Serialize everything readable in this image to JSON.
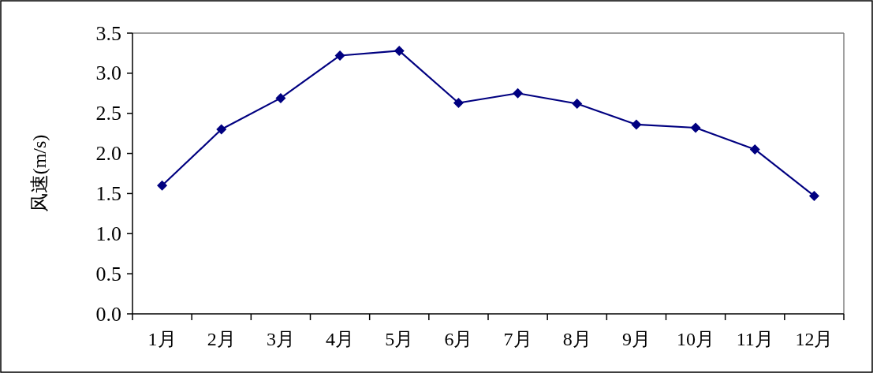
{
  "chart_data": {
    "type": "line",
    "ylabel": "风速(m/s)",
    "categories": [
      "1月",
      "2月",
      "3月",
      "4月",
      "5月",
      "6月",
      "7月",
      "8月",
      "9月",
      "10月",
      "11月",
      "12月"
    ],
    "series": [
      {
        "color": "#000080",
        "values": [
          1.6,
          2.3,
          2.69,
          3.22,
          3.28,
          2.63,
          2.75,
          2.62,
          2.36,
          2.32,
          2.05,
          1.47
        ]
      }
    ],
    "ylim": [
      0,
      3.5
    ],
    "yticks": [
      {
        "value": 0,
        "label": "0.0"
      },
      0.5,
      {
        "value": 1,
        "label": "1.0"
      },
      1.5,
      {
        "value": 2,
        "label": "2.0"
      },
      2.5,
      {
        "value": 3,
        "label": "3.0"
      },
      3.5
    ],
    "marker": "diamond",
    "line_style": "solid"
  }
}
